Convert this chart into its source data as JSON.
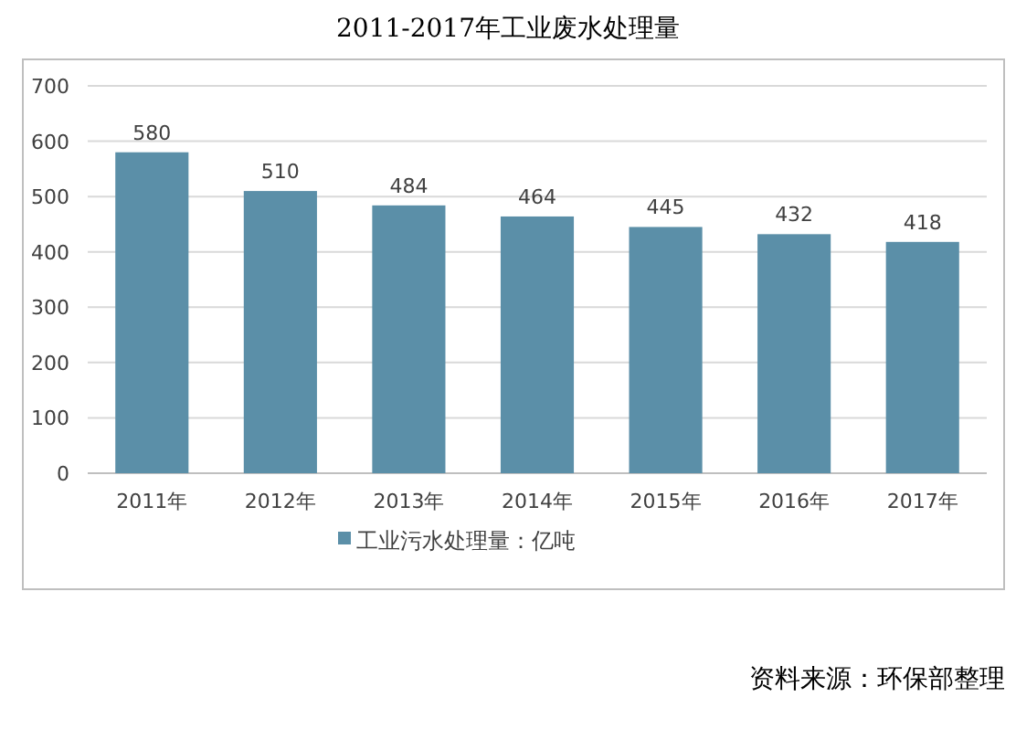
{
  "chart_data": {
    "type": "bar",
    "title": "2011-2017年工业废水处理量",
    "categories": [
      "2011年",
      "2012年",
      "2013年",
      "2014年",
      "2015年",
      "2016年",
      "2017年"
    ],
    "series": [
      {
        "name": "工业污水处理量：亿吨",
        "color": "#5b8fa8",
        "values": [
          580,
          510,
          484,
          464,
          445,
          432,
          418
        ]
      }
    ],
    "ylim": [
      0,
      700
    ],
    "yticks": [
      0,
      100,
      200,
      300,
      400,
      500,
      600,
      700
    ],
    "grid": "y",
    "data_labels": true,
    "legend": "bottom",
    "annotations": [
      "资料来源：环保部整理"
    ]
  }
}
